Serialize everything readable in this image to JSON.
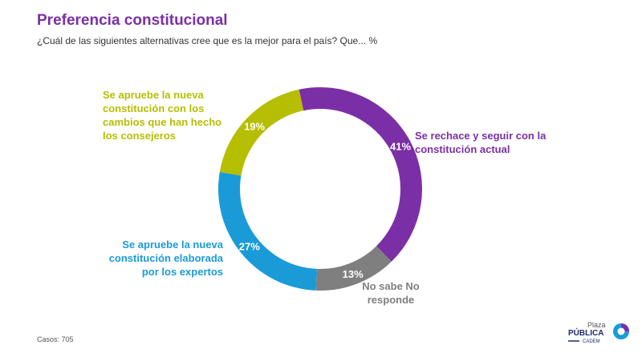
{
  "title": "Preferencia constitucional",
  "subtitle": "¿Cuál de las siguientes alternativas cree que es la mejor para el país? Que...  %",
  "footer": "Casos: 705",
  "logo": {
    "line1": "Plaza",
    "line2": "PÚBLICA",
    "line3": "CADEM"
  },
  "chart_data": {
    "type": "pie",
    "donut": true,
    "title": "Preferencia constitucional",
    "slices": [
      {
        "label": "Se rechace y seguir con la constitución actual",
        "value": 41,
        "value_label": "41%",
        "color": "#7b2fa6"
      },
      {
        "label": "No sabe No responde",
        "value": 13,
        "value_label": "13%",
        "color": "#7f7f7f"
      },
      {
        "label": "Se apruebe la nueva constitución elaborada por los expertos",
        "value": 27,
        "value_label": "27%",
        "color": "#1a9bd7"
      },
      {
        "label": "Se apruebe la nueva constitución con los cambios que han hecho los consejeros",
        "value": 19,
        "value_label": "19%",
        "color": "#b5be00"
      }
    ]
  }
}
